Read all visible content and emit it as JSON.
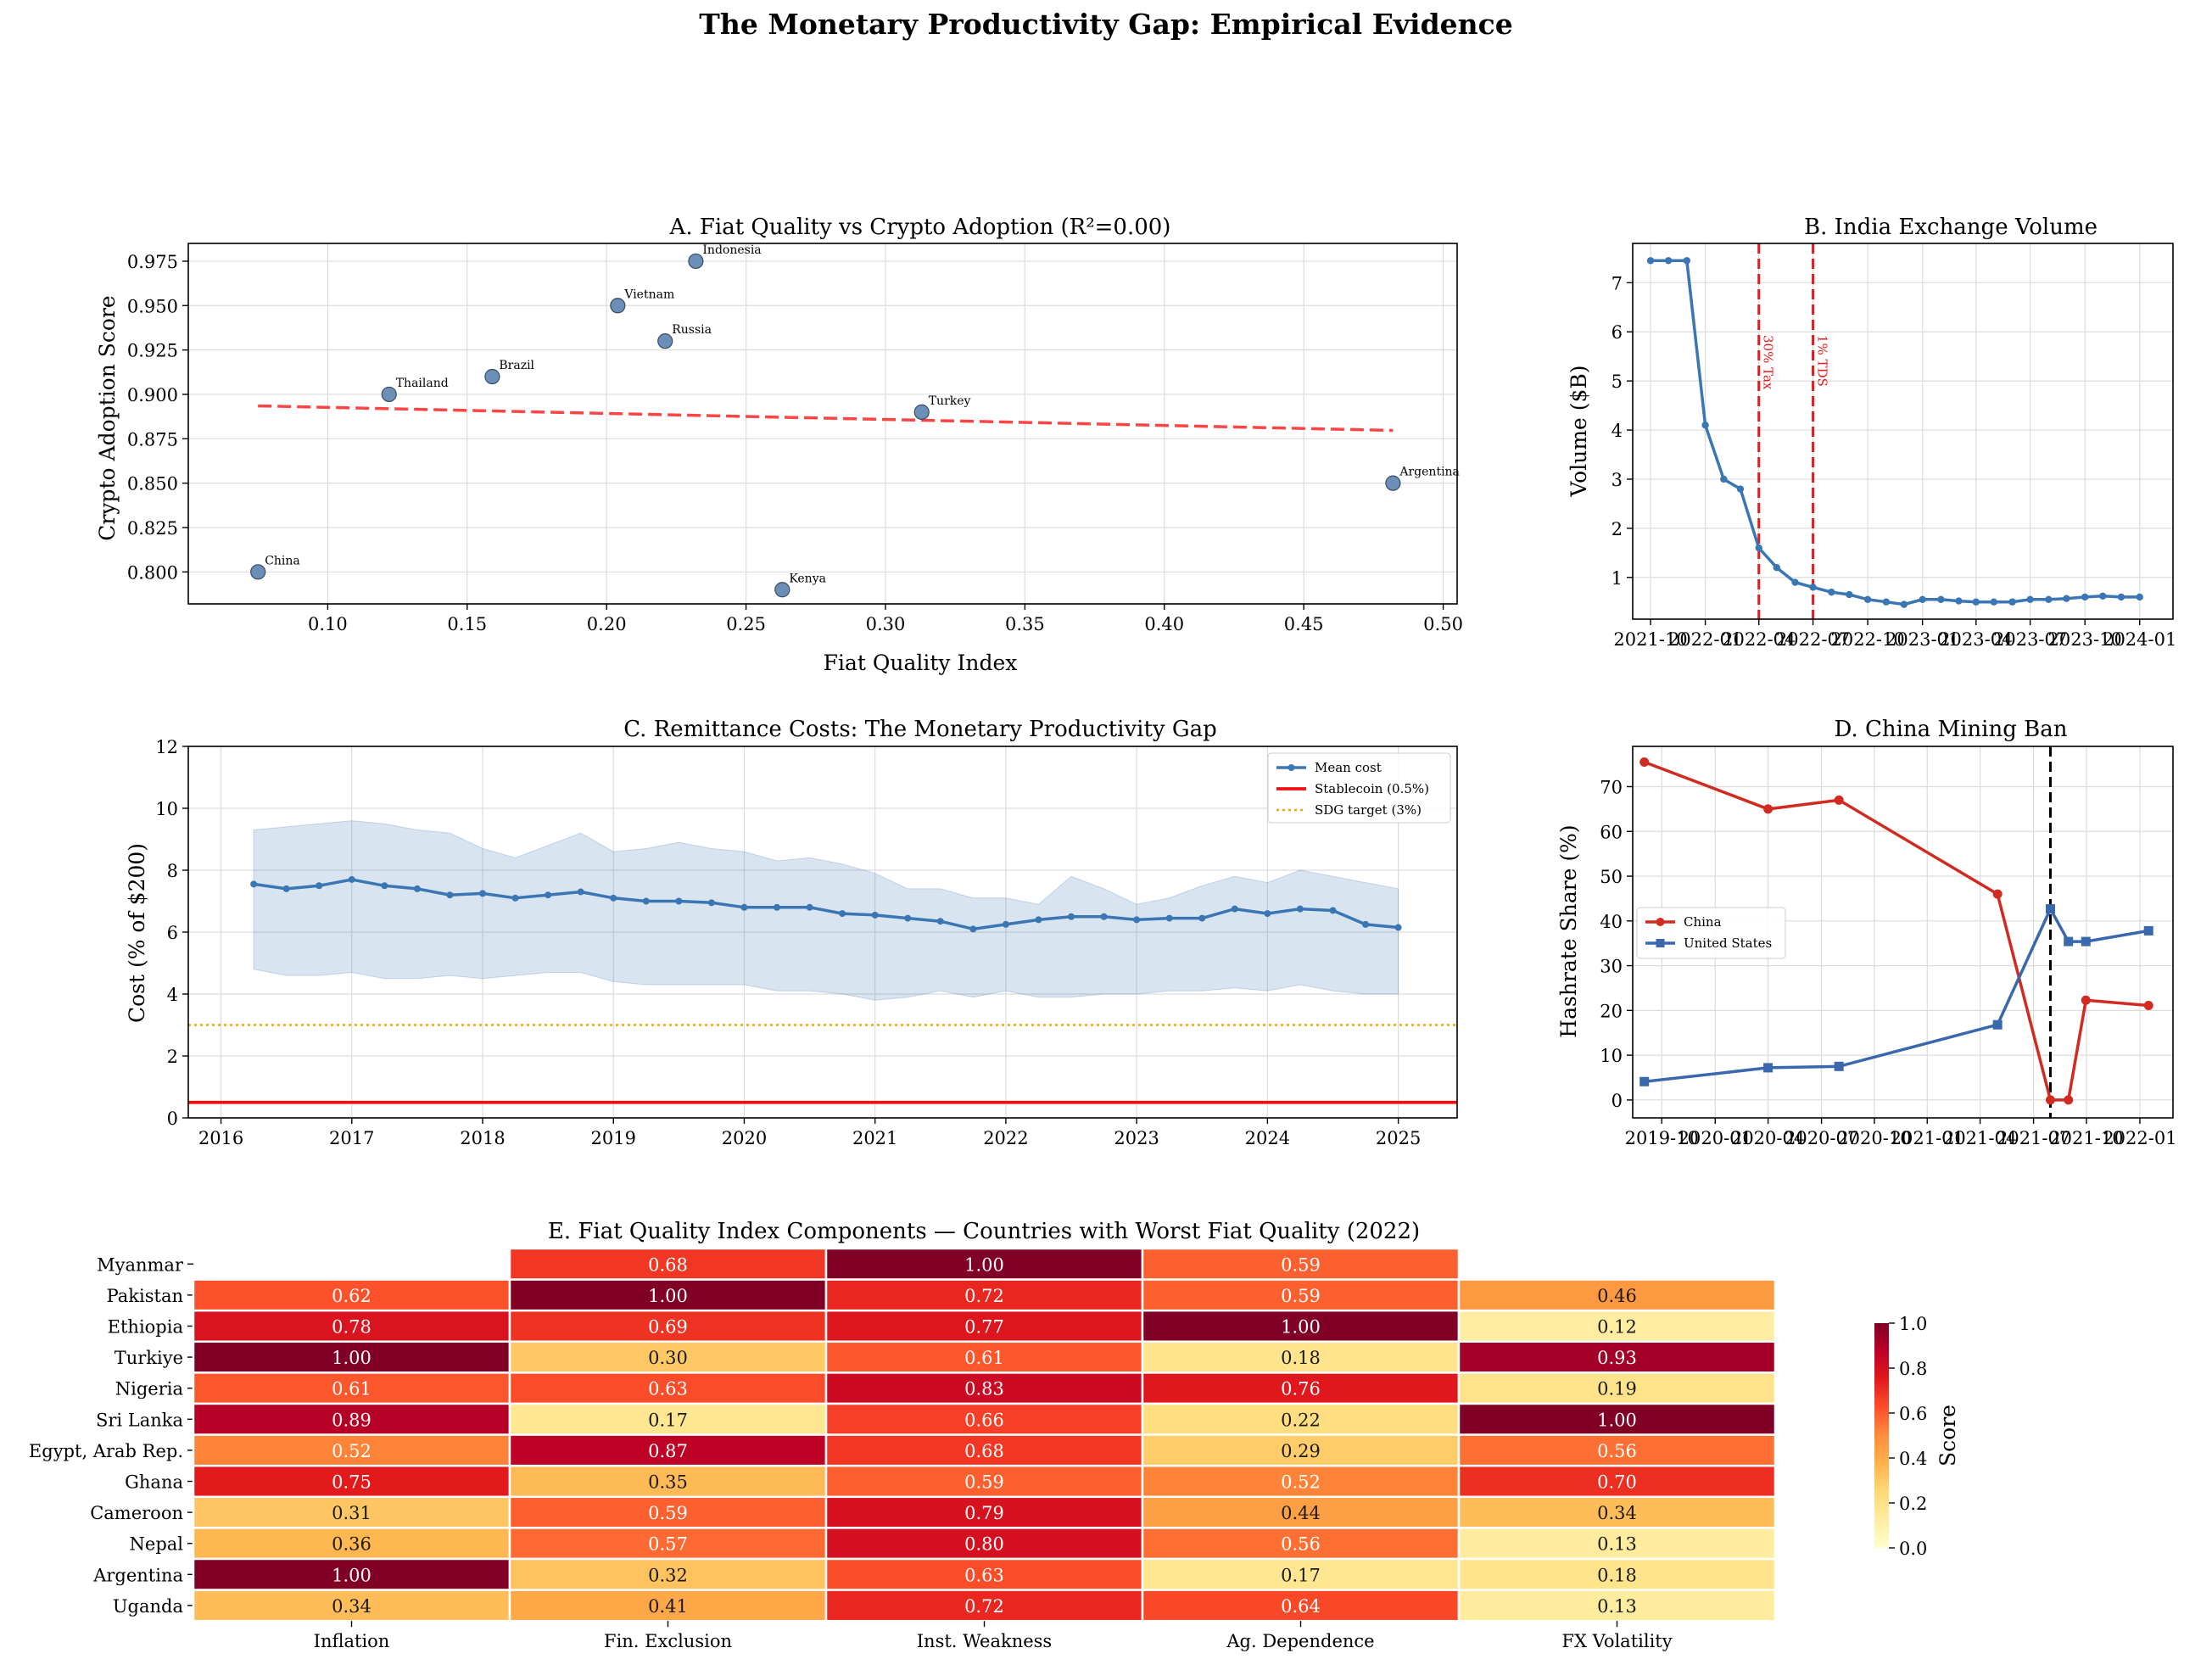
{
  "suptitle": "The Monetary Productivity Gap: Empirical Evidence",
  "chart_data": [
    {
      "id": "A",
      "type": "scatter",
      "title": "A. Fiat Quality vs Crypto Adoption (R²=0.00)",
      "xlabel": "Fiat Quality Index",
      "ylabel": "Crypto Adoption Score",
      "xlim": [
        0.05,
        0.505
      ],
      "ylim": [
        0.782,
        0.985
      ],
      "xticks": [
        0.1,
        0.15,
        0.2,
        0.25,
        0.3,
        0.35,
        0.4,
        0.45,
        0.5
      ],
      "xtick_labels": [
        "0.10",
        "0.15",
        "0.20",
        "0.25",
        "0.30",
        "0.35",
        "0.40",
        "0.45",
        "0.50"
      ],
      "yticks": [
        0.8,
        0.825,
        0.85,
        0.875,
        0.9,
        0.925,
        0.95,
        0.975
      ],
      "ytick_labels": [
        "0.800",
        "0.825",
        "0.850",
        "0.875",
        "0.900",
        "0.925",
        "0.950",
        "0.975"
      ],
      "grid": true,
      "points": [
        {
          "label": "China",
          "x": 0.075,
          "y": 0.8
        },
        {
          "label": "Thailand",
          "x": 0.122,
          "y": 0.9
        },
        {
          "label": "Brazil",
          "x": 0.159,
          "y": 0.91
        },
        {
          "label": "Vietnam",
          "x": 0.204,
          "y": 0.95
        },
        {
          "label": "Russia",
          "x": 0.221,
          "y": 0.93
        },
        {
          "label": "Indonesia",
          "x": 0.232,
          "y": 0.975
        },
        {
          "label": "Kenya",
          "x": 0.263,
          "y": 0.79
        },
        {
          "label": "Turkey",
          "x": 0.313,
          "y": 0.89
        },
        {
          "label": "Argentina",
          "x": 0.482,
          "y": 0.85
        }
      ],
      "trend": {
        "x": [
          0.075,
          0.482
        ],
        "y": [
          0.8935,
          0.8797
        ],
        "color": "#ff4444"
      },
      "marker_color": "#6b8fb6"
    },
    {
      "id": "B",
      "type": "line",
      "title": "B. India Exchange Volume",
      "ylabel": "Volume ($B)",
      "xlim": [
        0,
        860
      ],
      "ylim": [
        0.15,
        7.8
      ],
      "yticks": [
        1,
        2,
        3,
        4,
        5,
        6,
        7
      ],
      "ytick_labels": [
        "1",
        "2",
        "3",
        "4",
        "5",
        "6",
        "7"
      ],
      "xticks": [
        0,
        92,
        182,
        273,
        365,
        457,
        547,
        638,
        730,
        822
      ],
      "xtick_labels": [
        "2021-10",
        "2022-01",
        "2022-04",
        "2022-07",
        "2022-10",
        "2023-01",
        "2023-04",
        "2023-07",
        "2023-10",
        "2024-01"
      ],
      "grid": true,
      "x": [
        0,
        30,
        61,
        92,
        123,
        151,
        182,
        212,
        243,
        273,
        304,
        334,
        365,
        396,
        426,
        457,
        488,
        518,
        547,
        577,
        608,
        638,
        669,
        699,
        730,
        760,
        791,
        822
      ],
      "y": [
        7.45,
        7.45,
        7.45,
        4.1,
        3.0,
        2.8,
        1.6,
        1.2,
        0.9,
        0.8,
        0.7,
        0.65,
        0.55,
        0.5,
        0.45,
        0.55,
        0.55,
        0.52,
        0.5,
        0.5,
        0.5,
        0.55,
        0.55,
        0.57,
        0.6,
        0.62,
        0.6,
        0.6
      ],
      "series_color": "#3a76b4",
      "events": [
        {
          "x": 182,
          "label": "30% Tax"
        },
        {
          "x": 273,
          "label": "1% TDS"
        }
      ]
    },
    {
      "id": "C",
      "type": "line",
      "title": "C. Remittance Costs: The Monetary Productivity Gap",
      "ylabel": "Cost (% of $200)",
      "xlim": [
        2015.75,
        2025.45
      ],
      "ylim": [
        0,
        12
      ],
      "xticks": [
        2016,
        2017,
        2018,
        2019,
        2020,
        2021,
        2022,
        2023,
        2024,
        2025
      ],
      "xtick_labels": [
        "2016",
        "2017",
        "2018",
        "2019",
        "2020",
        "2021",
        "2022",
        "2023",
        "2024",
        "2025"
      ],
      "yticks": [
        0,
        2,
        4,
        6,
        8,
        10,
        12
      ],
      "ytick_labels": [
        "0",
        "2",
        "4",
        "6",
        "8",
        "10",
        "12"
      ],
      "grid": true,
      "x": [
        2016.25,
        2016.5,
        2016.75,
        2017.0,
        2017.25,
        2017.5,
        2017.75,
        2018.0,
        2018.25,
        2018.5,
        2018.75,
        2019.0,
        2019.25,
        2019.5,
        2019.75,
        2020.0,
        2020.25,
        2020.5,
        2020.75,
        2021.0,
        2021.25,
        2021.5,
        2021.75,
        2022.0,
        2022.25,
        2022.5,
        2022.75,
        2023.0,
        2023.25,
        2023.5,
        2023.75,
        2024.0,
        2024.25,
        2024.5,
        2024.75,
        2025.0
      ],
      "series": [
        {
          "name": "Mean cost",
          "color": "#3a76b4",
          "values": [
            7.55,
            7.4,
            7.5,
            7.7,
            7.5,
            7.4,
            7.2,
            7.25,
            7.1,
            7.2,
            7.3,
            7.1,
            7.0,
            7.0,
            6.95,
            6.8,
            6.8,
            6.8,
            6.6,
            6.55,
            6.45,
            6.35,
            6.1,
            6.25,
            6.4,
            6.5,
            6.5,
            6.4,
            6.45,
            6.45,
            6.75,
            6.6,
            6.75,
            6.7,
            6.25,
            6.15
          ],
          "band_upper": [
            9.3,
            9.4,
            9.5,
            9.6,
            9.5,
            9.3,
            9.2,
            8.7,
            8.4,
            8.8,
            9.2,
            8.6,
            8.7,
            8.9,
            8.7,
            8.6,
            8.3,
            8.4,
            8.2,
            7.9,
            7.4,
            7.4,
            7.1,
            7.1,
            6.9,
            7.8,
            7.4,
            6.9,
            7.1,
            7.5,
            7.8,
            7.6,
            8.0,
            7.8,
            7.6,
            7.4
          ],
          "band_lower": [
            4.8,
            4.6,
            4.6,
            4.7,
            4.5,
            4.5,
            4.6,
            4.5,
            4.6,
            4.7,
            4.7,
            4.4,
            4.3,
            4.3,
            4.3,
            4.3,
            4.1,
            4.1,
            4.0,
            3.8,
            3.9,
            4.1,
            3.9,
            4.1,
            3.9,
            3.9,
            4.0,
            4.0,
            4.1,
            4.1,
            4.2,
            4.1,
            4.3,
            4.1,
            4.0,
            4.0
          ]
        },
        {
          "name": "Stablecoin (0.5%)",
          "constant": 0.5,
          "color": "#ee1111"
        },
        {
          "name": "SDG target (3%)",
          "constant": 3.0,
          "color": "#f0a500"
        }
      ],
      "legend_position": "top-right"
    },
    {
      "id": "D",
      "type": "line",
      "title": "D. China Mining Ban",
      "ylabel": "Hashrate Share (%)",
      "xlim": [
        -50,
        880
      ],
      "ylim": [
        -4,
        79
      ],
      "xticks": [
        0,
        92,
        183,
        275,
        366,
        457,
        548,
        640,
        731,
        823
      ],
      "xtick_labels": [
        "2019-10",
        "2020-01",
        "2020-04",
        "2020-07",
        "2020-10",
        "2021-01",
        "2021-04",
        "2021-07",
        "2021-10",
        "2022-01"
      ],
      "yticks": [
        0,
        10,
        20,
        30,
        40,
        50,
        60,
        70
      ],
      "ytick_labels": [
        "0",
        "10",
        "20",
        "30",
        "40",
        "50",
        "60",
        "70"
      ],
      "grid": true,
      "ban_date_x": 669,
      "series": [
        {
          "name": "China",
          "color": "#d12b21",
          "marker": "circle",
          "x": [
            -30,
            183,
            305,
            578,
            669,
            700,
            730,
            838
          ],
          "values": [
            75.5,
            65.0,
            67.0,
            46.0,
            0.0,
            0.0,
            22.3,
            21.1
          ]
        },
        {
          "name": "United States",
          "color": "#3a68ad",
          "marker": "square",
          "x": [
            -30,
            183,
            305,
            578,
            669,
            700,
            730,
            838
          ],
          "values": [
            4.1,
            7.2,
            7.5,
            16.8,
            42.7,
            35.4,
            35.4,
            37.8
          ]
        }
      ],
      "legend_position": "center-left"
    },
    {
      "id": "E",
      "type": "heatmap",
      "title": "E. Fiat Quality Index Components — Countries with Worst Fiat Quality (2022)",
      "columns": [
        "Inflation",
        "Fin. Exclusion",
        "Inst. Weakness",
        "Ag. Dependence",
        "FX Volatility"
      ],
      "rows": [
        "Myanmar",
        "Pakistan",
        "Ethiopia",
        "Turkiye",
        "Nigeria",
        "Sri Lanka",
        "Egypt, Arab Rep.",
        "Ghana",
        "Cameroon",
        "Nepal",
        "Argentina",
        "Uganda"
      ],
      "values": [
        [
          null,
          0.68,
          1.0,
          0.59,
          null
        ],
        [
          0.62,
          1.0,
          0.72,
          0.59,
          0.46
        ],
        [
          0.78,
          0.69,
          0.77,
          1.0,
          0.12
        ],
        [
          1.0,
          0.3,
          0.61,
          0.18,
          0.93
        ],
        [
          0.61,
          0.63,
          0.83,
          0.76,
          0.19
        ],
        [
          0.89,
          0.17,
          0.66,
          0.22,
          1.0
        ],
        [
          0.52,
          0.87,
          0.68,
          0.29,
          0.56
        ],
        [
          0.75,
          0.35,
          0.59,
          0.52,
          0.7
        ],
        [
          0.31,
          0.59,
          0.79,
          0.44,
          0.34
        ],
        [
          0.36,
          0.57,
          0.8,
          0.56,
          0.13
        ],
        [
          1.0,
          0.32,
          0.63,
          0.17,
          0.18
        ],
        [
          0.34,
          0.41,
          0.72,
          0.64,
          0.13
        ]
      ],
      "colorbar": {
        "label": "Score",
        "range": [
          0,
          1
        ],
        "ticks": [
          0.0,
          0.2,
          0.4,
          0.6,
          0.8,
          1.0
        ],
        "tick_labels": [
          "0.0",
          "0.2",
          "0.4",
          "0.6",
          "0.8",
          "1.0"
        ],
        "colors": [
          "#ffffcc",
          "#ffeda0",
          "#fed976",
          "#feb24c",
          "#fd8d3c",
          "#fc4e2a",
          "#e31a1c",
          "#bd0026",
          "#800026"
        ]
      }
    }
  ]
}
